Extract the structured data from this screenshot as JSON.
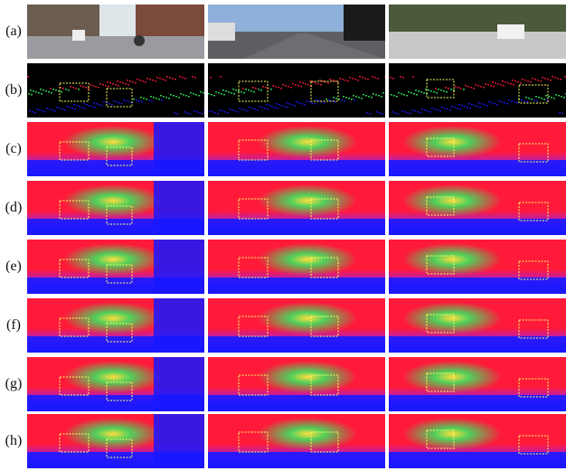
{
  "figure": {
    "rows": [
      {
        "label": "(a)",
        "kind": "rgb"
      },
      {
        "label": "(b)",
        "kind": "sparse"
      },
      {
        "label": "(c)",
        "kind": "depth"
      },
      {
        "label": "(d)",
        "kind": "depth"
      },
      {
        "label": "(e)",
        "kind": "depth"
      },
      {
        "label": "(f)",
        "kind": "depth"
      },
      {
        "label": "(g)",
        "kind": "depth"
      },
      {
        "label": "(h)",
        "kind": "depth"
      }
    ],
    "columns": 3,
    "colors": {
      "near": "#ff1a3a",
      "mid": "#30f060",
      "far": "#1818ff",
      "highlight": "#ffff40",
      "box": "#ffff66",
      "sky_a1": "#dfe6ea",
      "sky_a2": "#8fb0d8",
      "sky_a3": "#f4f6f6",
      "road": "#9a9aa0",
      "sparse_bg": "#000000"
    }
  }
}
